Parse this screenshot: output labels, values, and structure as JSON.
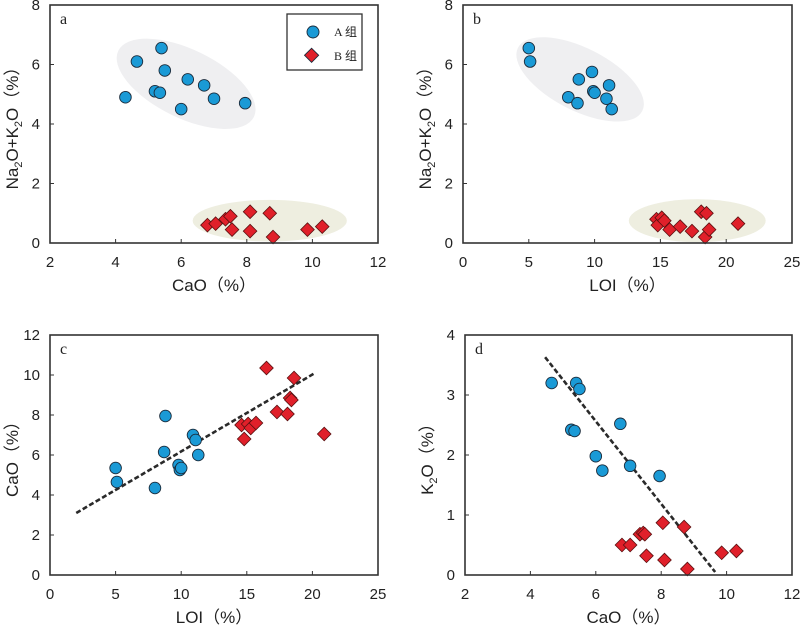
{
  "colors": {
    "group_a": "#1a9ad6",
    "group_b": "#e0202a",
    "marker_edge": "#1a2a3a",
    "ellipse_a": "#efeff1",
    "ellipse_b": "#eeeee0",
    "frame": "#333333",
    "trend": "#2a2a2a"
  },
  "legend": {
    "items": [
      {
        "label": "A 组",
        "marker": "circle",
        "color_key": "group_a"
      },
      {
        "label": "B 组",
        "marker": "diamond",
        "color_key": "group_b"
      }
    ]
  },
  "chart_data": [
    {
      "id": "a",
      "type": "scatter",
      "panel_label": "a",
      "xlabel": "CaO（%）",
      "ylabel": "Na₂O+K₂O（%）",
      "xlim": [
        2,
        12
      ],
      "ylim": [
        0,
        8
      ],
      "xticks": [
        2,
        4,
        6,
        8,
        10,
        12
      ],
      "yticks": [
        0,
        2,
        4,
        6,
        8
      ],
      "legend": "top-right",
      "grid": false,
      "ellipses": [
        {
          "group": "A",
          "cx": 6.15,
          "cy": 5.35,
          "rx": 2.3,
          "ry": 1.15,
          "angle_deg": 26
        },
        {
          "group": "B",
          "cx": 8.7,
          "cy": 0.75,
          "rx": 2.35,
          "ry": 0.7,
          "angle_deg": 0
        }
      ],
      "series": [
        {
          "name": "A 组",
          "marker": "circle",
          "x": [
            4.3,
            4.65,
            5.2,
            5.35,
            5.4,
            5.5,
            6.0,
            6.2,
            6.7,
            7.0,
            7.95
          ],
          "y": [
            4.9,
            6.1,
            5.1,
            5.05,
            6.55,
            5.8,
            4.5,
            5.5,
            5.3,
            4.85,
            4.7
          ]
        },
        {
          "name": "B 组",
          "marker": "diamond",
          "x": [
            6.8,
            7.05,
            7.35,
            7.5,
            7.55,
            8.1,
            8.1,
            8.7,
            8.8,
            9.85,
            10.3
          ],
          "y": [
            0.6,
            0.65,
            0.8,
            0.9,
            0.45,
            1.05,
            0.4,
            1.0,
            0.2,
            0.45,
            0.55
          ]
        }
      ]
    },
    {
      "id": "b",
      "type": "scatter",
      "panel_label": "b",
      "xlabel": "LOI（%）",
      "ylabel": "Na₂O+K₂O（%）",
      "xlim": [
        0,
        25
      ],
      "ylim": [
        0,
        8
      ],
      "xticks": [
        0,
        5,
        10,
        15,
        20,
        25
      ],
      "yticks": [
        0,
        2,
        4,
        6,
        8
      ],
      "grid": false,
      "ellipses": [
        {
          "group": "A",
          "cx": 8.9,
          "cy": 5.5,
          "rx": 5.3,
          "ry": 1.05,
          "angle_deg": 27
        },
        {
          "group": "B",
          "cx": 17.8,
          "cy": 0.75,
          "rx": 5.2,
          "ry": 0.72,
          "angle_deg": 0
        }
      ],
      "series": [
        {
          "name": "A 组",
          "marker": "circle",
          "x": [
            5.0,
            5.1,
            8.0,
            8.7,
            8.8,
            9.8,
            9.9,
            10.0,
            10.9,
            11.1,
            11.3
          ],
          "y": [
            6.55,
            6.1,
            4.9,
            4.7,
            5.5,
            5.75,
            5.1,
            5.05,
            4.85,
            5.3,
            4.5
          ]
        },
        {
          "name": "B 组",
          "marker": "diamond",
          "x": [
            14.7,
            14.8,
            15.1,
            15.3,
            15.7,
            16.5,
            17.4,
            18.1,
            18.4,
            18.5,
            18.7,
            20.9
          ],
          "y": [
            0.8,
            0.6,
            0.85,
            0.75,
            0.45,
            0.55,
            0.4,
            1.05,
            0.2,
            1.0,
            0.45,
            0.65
          ]
        }
      ]
    },
    {
      "id": "c",
      "type": "scatter",
      "panel_label": "c",
      "xlabel": "LOI（%）",
      "ylabel": "CaO（%）",
      "xlim": [
        0,
        25
      ],
      "ylim": [
        0,
        12
      ],
      "xticks": [
        0,
        5,
        10,
        15,
        20,
        25
      ],
      "yticks": [
        0,
        2,
        4,
        6,
        8,
        10,
        12
      ],
      "grid": false,
      "trendline": {
        "x": [
          2.0,
          20.2
        ],
        "y": [
          3.1,
          10.1
        ],
        "style": "dashed"
      },
      "series": [
        {
          "name": "A 组",
          "marker": "circle",
          "x": [
            5.0,
            5.1,
            8.0,
            8.7,
            8.8,
            9.8,
            9.9,
            10.0,
            10.9,
            11.1,
            11.3
          ],
          "y": [
            5.35,
            4.65,
            4.35,
            6.15,
            7.95,
            5.5,
            5.25,
            5.35,
            7.0,
            6.75,
            6.0
          ]
        },
        {
          "name": "B 组",
          "marker": "diamond",
          "x": [
            14.6,
            14.8,
            15.1,
            15.3,
            15.7,
            16.5,
            17.3,
            18.1,
            18.3,
            18.4,
            18.6,
            20.9
          ],
          "y": [
            7.5,
            6.8,
            7.55,
            7.35,
            7.6,
            10.35,
            8.15,
            8.05,
            8.85,
            8.75,
            9.85,
            7.05
          ]
        }
      ]
    },
    {
      "id": "d",
      "type": "scatter",
      "panel_label": "d",
      "xlabel": "CaO（%）",
      "ylabel": "K₂O（%）",
      "xlim": [
        2,
        12
      ],
      "ylim": [
        0,
        4
      ],
      "xticks": [
        2,
        4,
        6,
        8,
        10,
        12
      ],
      "yticks": [
        0,
        1,
        2,
        3,
        4
      ],
      "grid": false,
      "trendline": {
        "x": [
          4.45,
          9.65
        ],
        "y": [
          3.63,
          0.05
        ],
        "style": "dashed"
      },
      "series": [
        {
          "name": "A 组",
          "marker": "circle",
          "x": [
            4.65,
            5.25,
            5.35,
            5.4,
            5.5,
            6.0,
            6.2,
            6.75,
            7.05,
            7.95
          ],
          "y": [
            3.2,
            2.42,
            2.4,
            3.2,
            3.1,
            1.98,
            1.74,
            2.52,
            1.82,
            1.65
          ]
        },
        {
          "name": "B 组",
          "marker": "diamond",
          "x": [
            6.8,
            7.05,
            7.35,
            7.45,
            7.5,
            7.55,
            8.05,
            8.1,
            8.7,
            8.8,
            9.85,
            10.3
          ],
          "y": [
            0.5,
            0.5,
            0.68,
            0.7,
            0.68,
            0.32,
            0.87,
            0.25,
            0.8,
            0.1,
            0.37,
            0.4
          ]
        }
      ]
    }
  ]
}
